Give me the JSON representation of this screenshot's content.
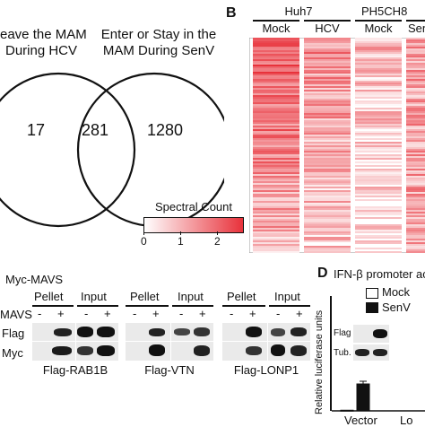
{
  "panel_a": {
    "left_title_line1": "eave the MAM",
    "left_title_line2": "During HCV",
    "right_title_line1": "Enter or Stay in the",
    "right_title_line2": "MAM During SenV",
    "count_left": "17",
    "count_overlap": "281",
    "count_right": "1280"
  },
  "panel_b": {
    "letter": "B",
    "cell_line_1": "Huh7",
    "cell_line_2": "PH5CH8",
    "col_mock_1": "Mock",
    "col_hcv": "HCV",
    "col_mock_2": "Mock",
    "col_senv": "Sen",
    "legend_title": "Spectral Count",
    "legend_ticks": [
      "0",
      "1",
      "2"
    ],
    "heat_color": "#e8323b"
  },
  "panel_c": {
    "construct": "Myc-MAVS",
    "row_mavs": "MAVS",
    "row_flag": "Flag",
    "row_myc": "Myc",
    "pellet": "Pellet",
    "input": "Input",
    "minus": "-",
    "plus": "+",
    "blot1": "Flag-RAB1B",
    "blot2": "Flag-VTN",
    "blot3": "Flag-LONP1"
  },
  "panel_d": {
    "letter": "D",
    "title": "IFN-β promoter act",
    "ylabel_line1": "Relative luciferase units",
    "legend_mock": "Mock",
    "legend_senv": "SenV",
    "inset_flag": "Flag",
    "inset_tub": "Tub.",
    "x_vector": "Vector",
    "x_second": "Lo",
    "bar_values": {
      "vector_mock": 0.3,
      "vector_senv": 12.5
    }
  }
}
